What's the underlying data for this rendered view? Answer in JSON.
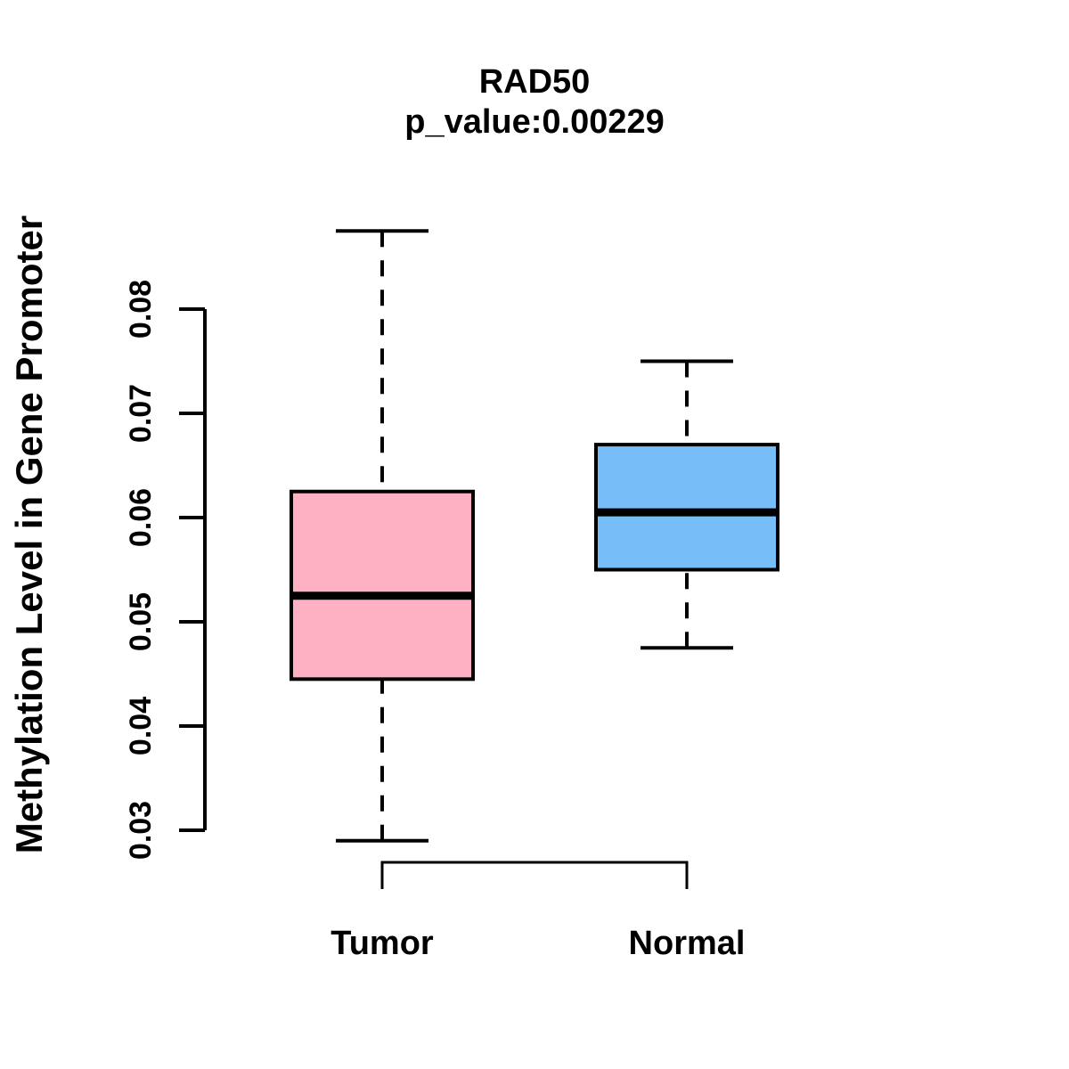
{
  "chart_data": {
    "type": "boxplot",
    "title": "RAD50",
    "subtitle": "p_value:0.00229",
    "ylabel": "Methylation Level in Gene Promoter",
    "xlabels": [
      "Tumor",
      "Normal"
    ],
    "ytick_values": [
      0.03,
      0.04,
      0.05,
      0.06,
      0.07,
      0.08
    ],
    "ytick_labels": [
      "0.03",
      "0.04",
      "0.05",
      "0.06",
      "0.07",
      "0.08"
    ],
    "axis_range": [
      0.03,
      0.08
    ],
    "grid": "off",
    "background_color": "#FFFFFF",
    "line_color": "#000000",
    "groups": [
      {
        "label": "Tumor",
        "fill_color": "#FFB1C4",
        "stats": {
          "lower_whisker": 0.029,
          "q1": 0.0445,
          "median": 0.0525,
          "q3": 0.0625,
          "upper_whisker": 0.0875
        }
      },
      {
        "label": "Normal",
        "fill_color": "#77BDF7",
        "stats": {
          "lower_whisker": 0.0475,
          "q1": 0.055,
          "median": 0.0605,
          "q3": 0.067,
          "upper_whisker": 0.075
        }
      }
    ]
  }
}
